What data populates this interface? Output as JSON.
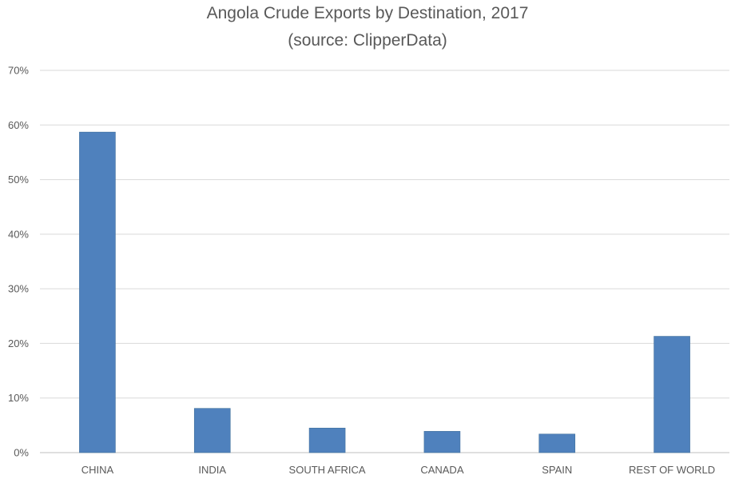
{
  "chart_data": {
    "type": "bar",
    "title": "Angola Crude Exports by Destination, 2017",
    "subtitle": "(source: ClipperData)",
    "categories": [
      "CHINA",
      "INDIA",
      "SOUTH AFRICA",
      "CANADA",
      "SPAIN",
      "REST OF WORLD"
    ],
    "values": [
      58.7,
      8.1,
      4.5,
      3.9,
      3.4,
      21.3
    ],
    "value_unit": "%",
    "xlabel": "",
    "ylabel": "",
    "ylim": [
      0,
      70
    ],
    "yticks": [
      "0%",
      "10%",
      "20%",
      "30%",
      "40%",
      "50%",
      "60%",
      "70%"
    ],
    "grid": true,
    "legend": "none",
    "colors": {
      "bar": "#4f81bd",
      "bar_edge": "#41719c",
      "grid": "#d9d9d9",
      "text": "#595959"
    }
  }
}
